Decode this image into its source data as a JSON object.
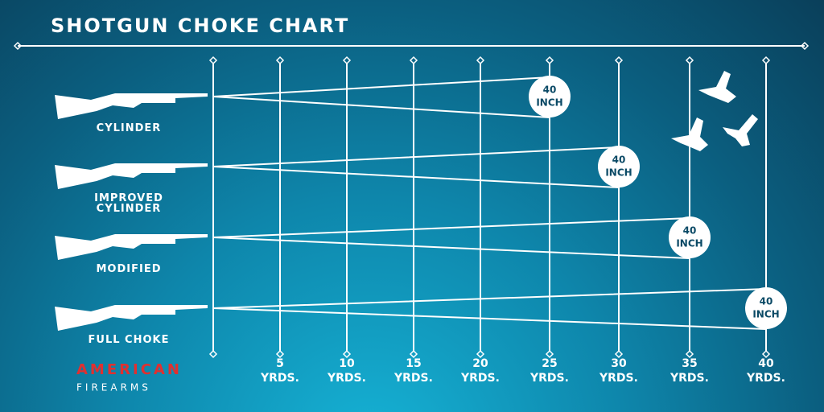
{
  "header": {
    "title": "SHOTGUN CHOKE CHART"
  },
  "chokes": [
    {
      "label": "CYLINDER",
      "pattern": {
        "line1": "40",
        "line2": "INCH"
      }
    },
    {
      "label": "IMPROVED CYLINDER",
      "pattern": {
        "line1": "40",
        "line2": "INCH"
      }
    },
    {
      "label": "MODIFIED",
      "pattern": {
        "line1": "40",
        "line2": "INCH"
      }
    },
    {
      "label": "FULL CHOKE",
      "pattern": {
        "line1": "40",
        "line2": "INCH"
      }
    }
  ],
  "distances": [
    {
      "number": "5",
      "unit": "YRDS."
    },
    {
      "number": "10",
      "unit": "YRDS."
    },
    {
      "number": "15",
      "unit": "YRDS."
    },
    {
      "number": "20",
      "unit": "YRDS."
    },
    {
      "number": "25",
      "unit": "YRDS."
    },
    {
      "number": "30",
      "unit": "YRDS."
    },
    {
      "number": "35",
      "unit": "YRDS."
    },
    {
      "number": "40",
      "unit": "YRDS."
    }
  ],
  "logo": {
    "line1": "AMERICAN",
    "line2": "FIREARMS"
  }
}
